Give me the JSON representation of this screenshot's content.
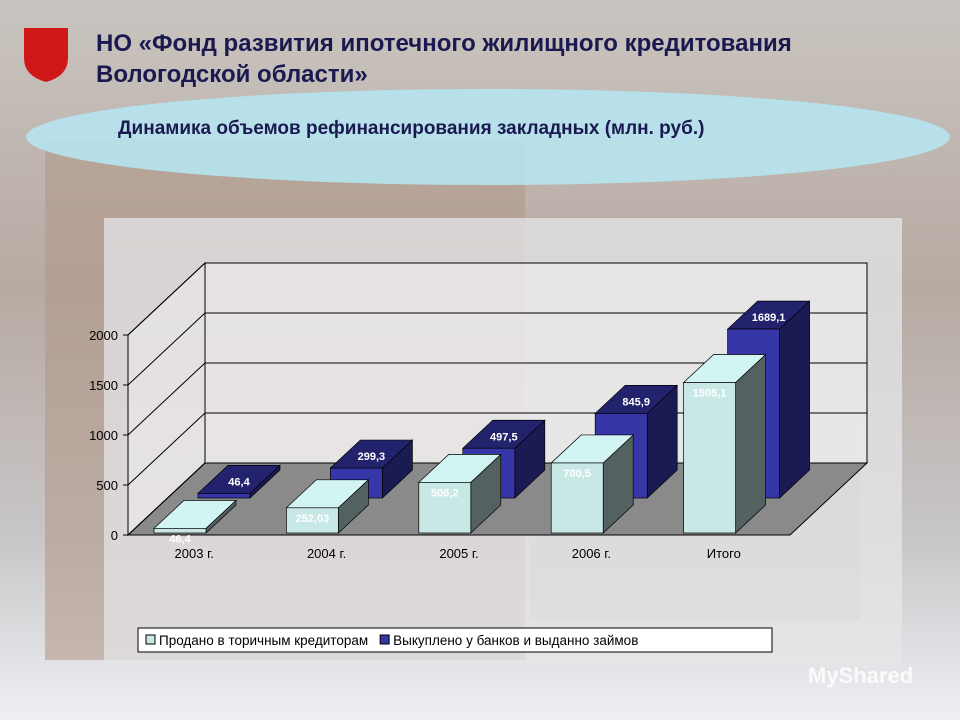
{
  "header": {
    "title": "НО «Фонд развития ипотечного жилищного кредитования Вологодской области»",
    "subtitle": "Динамика объемов рефинансирования закладных (млн. руб.)"
  },
  "chart_data": {
    "type": "bar3d",
    "categories": [
      "2003 г.",
      "2004 г.",
      "2005 г.",
      "2006 г.",
      "Итого"
    ],
    "series": [
      {
        "name": "Продано в торичным кредиторам",
        "color": "#c8e8e6",
        "values": [
          46.4,
          252.03,
          506.2,
          700.5,
          1505.1
        ],
        "value_labels": [
          "46,4",
          "252,03",
          "506,2",
          "700,5",
          "1505,1"
        ]
      },
      {
        "name": "Выкуплено у банков и выданно займов",
        "color": "#3636a8",
        "values": [
          46.4,
          299.3,
          497.5,
          845.9,
          1689.1
        ],
        "value_labels": [
          "46,4",
          "299,3",
          "497,5",
          "845,9",
          "1689,1"
        ]
      }
    ],
    "ylim": [
      0,
      2000
    ],
    "yticks": [
      0,
      500,
      1000,
      1500,
      2000
    ],
    "grid": true
  },
  "watermark": "MyShared"
}
